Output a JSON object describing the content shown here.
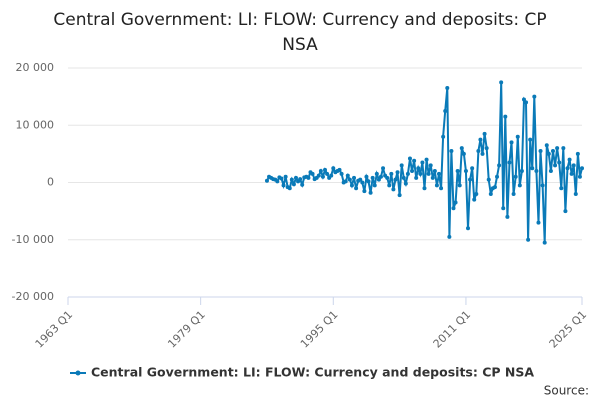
{
  "chart_data": {
    "type": "line",
    "title": "Central Government: LI: FLOW: Currency and deposits: CP NSA",
    "source": "Source:",
    "x": [
      "1987 Q1",
      "1987 Q2",
      "1987 Q3",
      "1987 Q4",
      "1988 Q1",
      "1988 Q2",
      "1988 Q3",
      "1988 Q4",
      "1989 Q1",
      "1989 Q2",
      "1989 Q3",
      "1989 Q4",
      "1990 Q1",
      "1990 Q2",
      "1990 Q3",
      "1990 Q4",
      "1991 Q1",
      "1991 Q2",
      "1991 Q3",
      "1991 Q4",
      "1992 Q1",
      "1992 Q2",
      "1992 Q3",
      "1992 Q4",
      "1993 Q1",
      "1993 Q2",
      "1993 Q3",
      "1993 Q4",
      "1994 Q1",
      "1994 Q2",
      "1994 Q3",
      "1994 Q4",
      "1995 Q1",
      "1995 Q2",
      "1995 Q3",
      "1995 Q4",
      "1996 Q1",
      "1996 Q2",
      "1996 Q3",
      "1996 Q4",
      "1997 Q1",
      "1997 Q2",
      "1997 Q3",
      "1997 Q4",
      "1998 Q1",
      "1998 Q2",
      "1998 Q3",
      "1998 Q4",
      "1999 Q1",
      "1999 Q2",
      "1999 Q3",
      "1999 Q4",
      "2000 Q1",
      "2000 Q2",
      "2000 Q3",
      "2000 Q4",
      "2001 Q1",
      "2001 Q2",
      "2001 Q3",
      "2001 Q4",
      "2002 Q1",
      "2002 Q2",
      "2002 Q3",
      "2002 Q4",
      "2003 Q1",
      "2003 Q2",
      "2003 Q3",
      "2003 Q4",
      "2004 Q1",
      "2004 Q2",
      "2004 Q3",
      "2004 Q4",
      "2005 Q1",
      "2005 Q2",
      "2005 Q3",
      "2005 Q4",
      "2006 Q1",
      "2006 Q2",
      "2006 Q3",
      "2006 Q4",
      "2007 Q1",
      "2007 Q2",
      "2007 Q3",
      "2007 Q4",
      "2008 Q1",
      "2008 Q2",
      "2008 Q3",
      "2008 Q4",
      "2009 Q1",
      "2009 Q2",
      "2009 Q3",
      "2009 Q4",
      "2010 Q1",
      "2010 Q2",
      "2010 Q3",
      "2010 Q4",
      "2011 Q1",
      "2011 Q2",
      "2011 Q3",
      "2011 Q4",
      "2012 Q1",
      "2012 Q2",
      "2012 Q3",
      "2012 Q4",
      "2013 Q1",
      "2013 Q2",
      "2013 Q3",
      "2013 Q4",
      "2014 Q1",
      "2014 Q2",
      "2014 Q3",
      "2014 Q4",
      "2015 Q1",
      "2015 Q2",
      "2015 Q3",
      "2015 Q4",
      "2016 Q1",
      "2016 Q2",
      "2016 Q3",
      "2016 Q4",
      "2017 Q1",
      "2017 Q2",
      "2017 Q3",
      "2017 Q4",
      "2018 Q1",
      "2018 Q2",
      "2018 Q3",
      "2018 Q4",
      "2019 Q1",
      "2019 Q2",
      "2019 Q3",
      "2019 Q4",
      "2020 Q1",
      "2020 Q2",
      "2020 Q3",
      "2020 Q4",
      "2021 Q1",
      "2021 Q2",
      "2021 Q3",
      "2021 Q4",
      "2022 Q1",
      "2022 Q2",
      "2022 Q3",
      "2022 Q4",
      "2023 Q1",
      "2023 Q2",
      "2023 Q3",
      "2023 Q4",
      "2024 Q1",
      "2024 Q2",
      "2024 Q3",
      "2024 Q4",
      "2025 Q1"
    ],
    "series": [
      {
        "name": "Central Government: LI: FLOW: Currency and deposits: CP NSA",
        "color": "#0a7ab8",
        "values": [
          300,
          1000,
          800,
          600,
          500,
          200,
          900,
          700,
          -500,
          1000,
          -800,
          -1000,
          500,
          -300,
          800,
          200,
          600,
          -400,
          900,
          1000,
          800,
          1800,
          1500,
          600,
          800,
          1200,
          2000,
          1000,
          2200,
          1500,
          800,
          1200,
          2500,
          1800,
          2000,
          2200,
          1500,
          0,
          200,
          1200,
          500,
          -500,
          800,
          -1000,
          300,
          500,
          0,
          -1500,
          1000,
          200,
          -1800,
          800,
          -500,
          1500,
          500,
          1000,
          2500,
          1200,
          800,
          -500,
          1500,
          -1200,
          500,
          1800,
          -2200,
          3000,
          800,
          -200,
          1500,
          4200,
          2000,
          3800,
          800,
          2500,
          1500,
          3500,
          -1000,
          4000,
          1500,
          3000,
          800,
          2000,
          -500,
          1500,
          -1000,
          8000,
          12500,
          16500,
          -9500,
          5500,
          -4500,
          -3500,
          2000,
          -500,
          6000,
          5000,
          2000,
          -8000,
          500,
          2500,
          -3000,
          -2000,
          5500,
          7500,
          5000,
          8500,
          6000,
          500,
          -2000,
          -1000,
          -800,
          1000,
          3000,
          17500,
          -4500,
          11500,
          -6000,
          3500,
          7000,
          -2000,
          1000,
          8000,
          -500,
          2000,
          14500,
          14000,
          -10000,
          7500,
          2500,
          15000,
          2000,
          -7000,
          5500,
          -500,
          -10500,
          6500,
          5000,
          2000,
          5500,
          3000,
          6000,
          3500,
          -1000,
          6000,
          -5000,
          2500,
          4000,
          1500,
          3000,
          -2000,
          5000,
          1000,
          2500
        ]
      }
    ],
    "xlim": [
      "1963 Q1",
      "2025 Q1"
    ],
    "xticks": [
      "1963 Q1",
      "1979 Q1",
      "1995 Q1",
      "2011 Q1",
      "2025 Q1"
    ],
    "ylim": [
      -20000,
      20000
    ],
    "yticks": [
      {
        "value": -20000,
        "label": "-20 000"
      },
      {
        "value": -10000,
        "label": "-10 000"
      },
      0,
      {
        "value": 10000,
        "label": "10 000"
      },
      {
        "value": 20000,
        "label": "20 000"
      }
    ],
    "grid": true,
    "legend": "bottom"
  }
}
